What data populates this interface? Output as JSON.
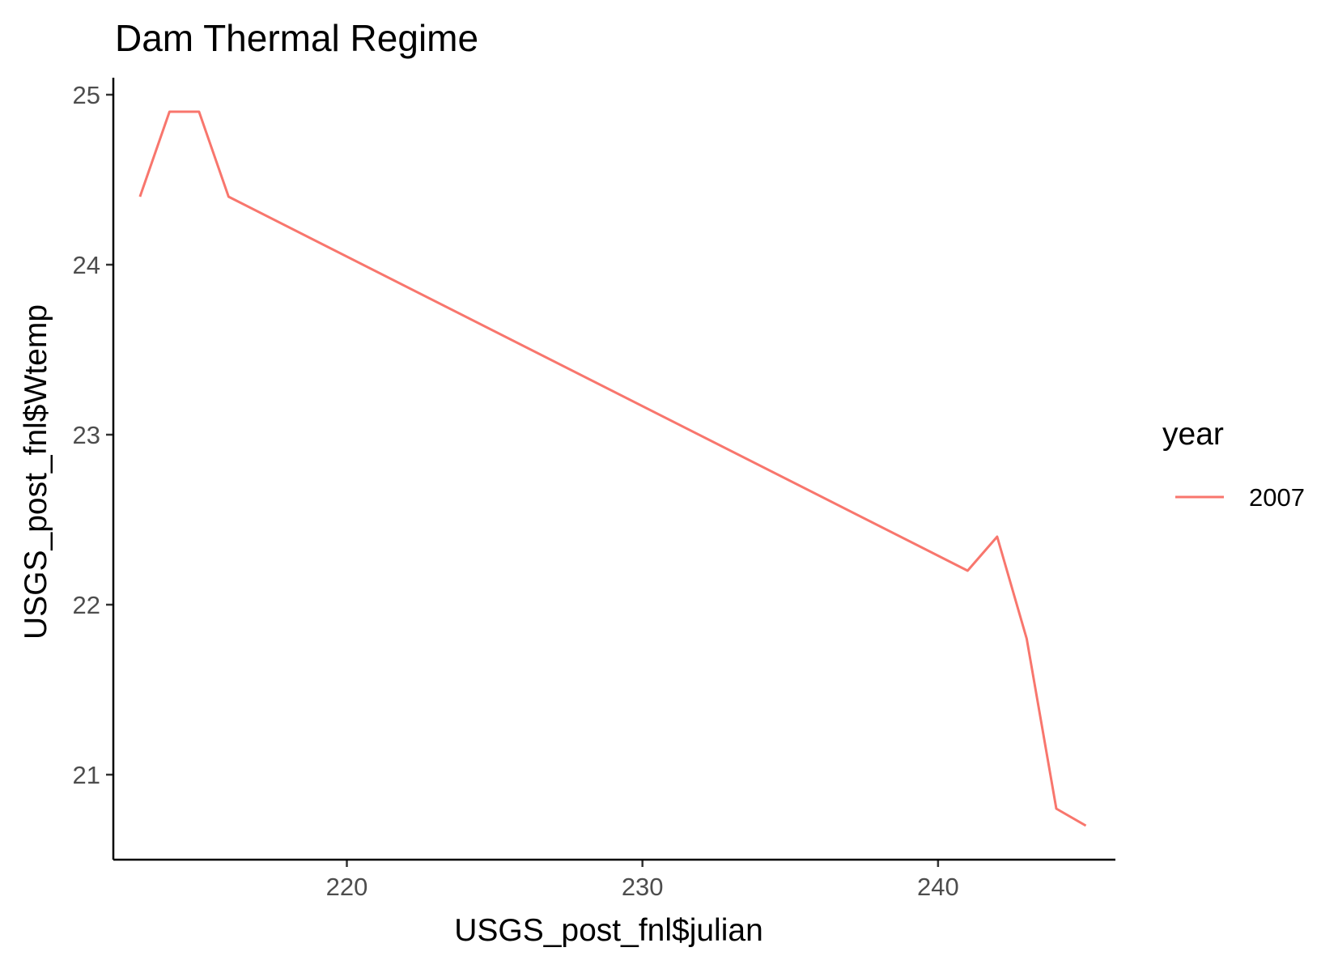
{
  "chart_data": {
    "type": "line",
    "title": "Dam Thermal Regime",
    "xlabel": "USGS_post_fnl$julian",
    "ylabel": "USGS_post_fnl$Wtemp",
    "xlim": [
      212.1,
      246.0
    ],
    "ylim": [
      20.5,
      25.1
    ],
    "x_ticks": [
      220,
      230,
      240
    ],
    "y_ticks": [
      21,
      22,
      23,
      24,
      25
    ],
    "grid": false,
    "legend": {
      "title": "year",
      "position": "right"
    },
    "series": [
      {
        "name": "2007",
        "color": "#F8766D",
        "x": [
          213,
          214,
          215,
          216,
          241,
          242,
          243,
          244,
          245
        ],
        "y": [
          24.4,
          24.9,
          24.9,
          24.4,
          22.2,
          22.4,
          21.8,
          20.8,
          20.7
        ]
      }
    ]
  }
}
